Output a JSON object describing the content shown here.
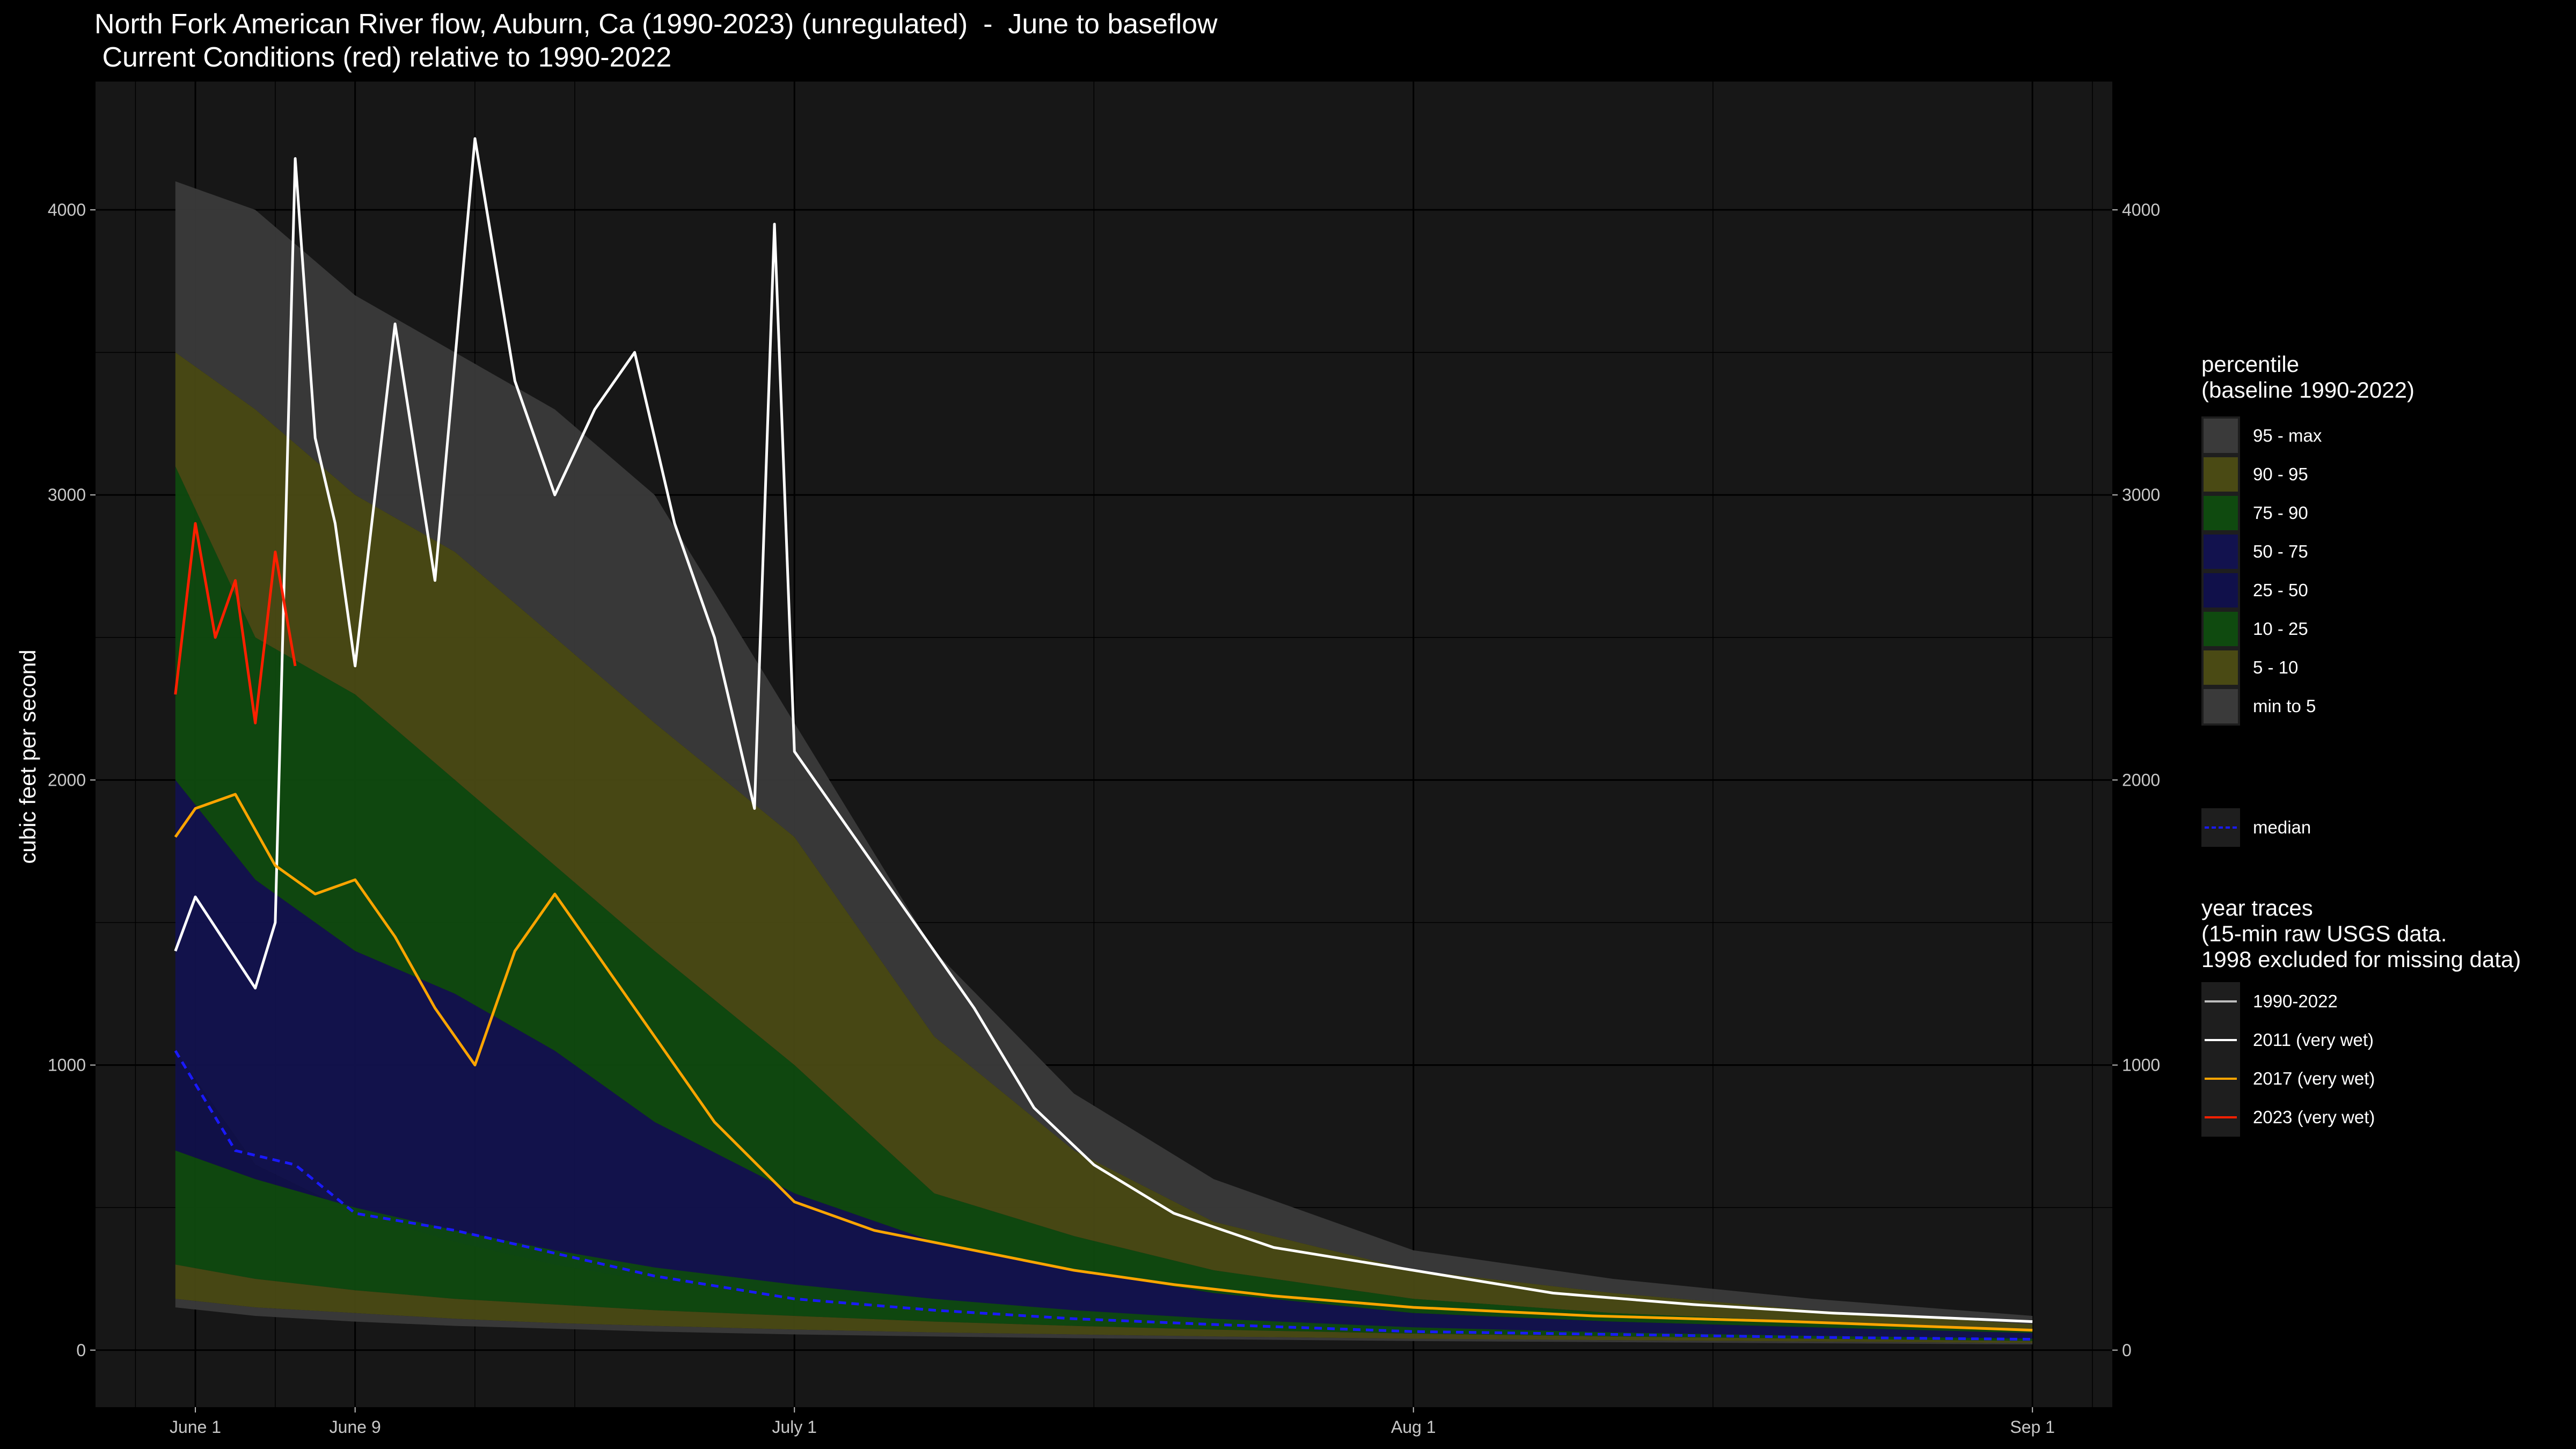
{
  "title": {
    "line1": "North Fork American River flow, Auburn, Ca (1990-2023) (unregulated)  -  June to baseflow",
    "line2": " Current Conditions (red) relative to 1990-2022"
  },
  "axes": {
    "ylabel": "cubic feet per second",
    "x_ticks": [
      "June 1",
      "June 9",
      "July 1",
      "Aug 1",
      "Sep 1"
    ],
    "y_ticks": [
      "0",
      "1000",
      "2000",
      "3000",
      "4000"
    ]
  },
  "legend": {
    "percentile_title": "percentile\n(baseline 1990-2022)",
    "percentile_items": [
      {
        "label": "95 - max",
        "color": "#3a3a3a"
      },
      {
        "label": "90 - 95",
        "color": "#4a4a14"
      },
      {
        "label": "75 - 90",
        "color": "#0f4a0f"
      },
      {
        "label": "50 - 75",
        "color": "#12124e"
      },
      {
        "label": "25 - 50",
        "color": "#10104a"
      },
      {
        "label": "10 - 25",
        "color": "#0f4a0f"
      },
      {
        "label": "5 - 10",
        "color": "#4a4a14"
      },
      {
        "label": "min to 5",
        "color": "#3a3a3a"
      }
    ],
    "median_label": "median",
    "median_color": "#1a1aff",
    "traces_title": "year traces\n(15-min raw USGS data.\n1998 excluded for missing data)",
    "trace_items": [
      {
        "label": "1990-2022",
        "color": "#bdbdbd"
      },
      {
        "label": "2011 (very wet)",
        "color": "#ffffff"
      },
      {
        "label": "2017 (very wet)",
        "color": "#ffa500"
      },
      {
        "label": "2023 (very wet)",
        "color": "#ff2000"
      }
    ]
  },
  "chart_data": {
    "type": "area",
    "title": "North Fork American River flow, Auburn, Ca (1990-2023) (unregulated)  -  June to baseflow",
    "subtitle": " Current Conditions (red) relative to 1990-2022",
    "ylabel": "cubic feet per second",
    "x_ticks": [
      "June 1",
      "June 9",
      "July 1",
      "Aug 1",
      "Sep 1"
    ],
    "xlim": [
      "May 27",
      "Sep 5"
    ],
    "ylim": [
      -200,
      4450
    ],
    "grid": true,
    "legend_position": "right",
    "percentile_bands": {
      "x": [
        "May 31",
        "Jun 4",
        "Jun 9",
        "Jun 14",
        "Jun 19",
        "Jun 24",
        "Jul 1",
        "Jul 8",
        "Jul 15",
        "Jul 22",
        "Aug 1",
        "Aug 11",
        "Aug 21",
        "Sep 1"
      ],
      "p0": [
        150,
        120,
        100,
        85,
        75,
        65,
        55,
        48,
        42,
        38,
        32,
        28,
        24,
        20
      ],
      "p5": [
        180,
        150,
        130,
        110,
        95,
        85,
        72,
        62,
        55,
        48,
        40,
        35,
        30,
        25
      ],
      "p10": [
        300,
        250,
        210,
        180,
        160,
        140,
        120,
        100,
        85,
        72,
        58,
        48,
        40,
        32
      ],
      "p25": [
        700,
        600,
        500,
        420,
        350,
        290,
        230,
        180,
        140,
        110,
        80,
        62,
        50,
        40
      ],
      "p50": [
        1050,
        650,
        480,
        380,
        300,
        240,
        180,
        140,
        110,
        90,
        65,
        55,
        45,
        38
      ],
      "p75": [
        2000,
        1650,
        1400,
        1250,
        1050,
        800,
        550,
        380,
        280,
        200,
        130,
        100,
        80,
        60
      ],
      "p90": [
        3100,
        2500,
        2300,
        2000,
        1700,
        1400,
        1000,
        550,
        400,
        280,
        180,
        130,
        100,
        70
      ],
      "p95": [
        3500,
        3300,
        3000,
        2800,
        2500,
        2200,
        1800,
        1100,
        700,
        450,
        280,
        200,
        140,
        90
      ],
      "pmax": [
        4100,
        4000,
        3700,
        3500,
        3300,
        3000,
        2200,
        1400,
        900,
        600,
        350,
        250,
        180,
        120
      ]
    },
    "series": [
      {
        "name": "median",
        "x": [
          "May 31",
          "Jun 3",
          "Jun 6",
          "Jun 9",
          "Jun 14",
          "Jun 19",
          "Jun 24",
          "Jul 1",
          "Jul 8",
          "Jul 15",
          "Jul 22",
          "Aug 1",
          "Aug 11",
          "Aug 21",
          "Sep 1"
        ],
        "y": [
          1050,
          700,
          650,
          480,
          420,
          340,
          260,
          180,
          140,
          110,
          90,
          65,
          55,
          45,
          38
        ]
      },
      {
        "name": "2011 (very wet)",
        "x": [
          "May 31",
          "Jun 1",
          "Jun 4",
          "Jun 5",
          "Jun 6",
          "Jun 7",
          "Jun 8",
          "Jun 9",
          "Jun 11",
          "Jun 13",
          "Jun 15",
          "Jun 17",
          "Jun 19",
          "Jun 21",
          "Jun 23",
          "Jun 25",
          "Jun 27",
          "Jun 29",
          "Jun 30",
          "Jul 1",
          "Jul 4",
          "Jul 7",
          "Jul 10",
          "Jul 13",
          "Jul 16",
          "Jul 20",
          "Jul 25",
          "Aug 1",
          "Aug 8",
          "Aug 15",
          "Aug 22",
          "Sep 1"
        ],
        "y": [
          1400,
          1590,
          1270,
          1500,
          4180,
          3200,
          2900,
          2400,
          3600,
          2700,
          4250,
          3400,
          3000,
          3300,
          3500,
          2900,
          2500,
          1900,
          3950,
          2100,
          1800,
          1500,
          1200,
          850,
          650,
          480,
          360,
          280,
          200,
          160,
          130,
          100
        ]
      },
      {
        "name": "2017 (very wet)",
        "x": [
          "May 31",
          "Jun 1",
          "Jun 3",
          "Jun 5",
          "Jun 7",
          "Jun 9",
          "Jun 11",
          "Jun 13",
          "Jun 15",
          "Jun 17",
          "Jun 19",
          "Jun 21",
          "Jun 24",
          "Jun 27",
          "Jul 1",
          "Jul 5",
          "Jul 10",
          "Jul 15",
          "Jul 20",
          "Jul 25",
          "Aug 1",
          "Aug 10",
          "Aug 20",
          "Sep 1"
        ],
        "y": [
          1800,
          1900,
          1950,
          1700,
          1600,
          1650,
          1450,
          1200,
          1000,
          1400,
          1600,
          1400,
          1100,
          800,
          520,
          420,
          350,
          280,
          230,
          190,
          150,
          120,
          100,
          70
        ]
      },
      {
        "name": "2023 (very wet)",
        "x": [
          "May 31",
          "Jun 1",
          "Jun 2",
          "Jun 3",
          "Jun 4",
          "Jun 5",
          "Jun 6"
        ],
        "y": [
          2300,
          2900,
          2500,
          2700,
          2200,
          2800,
          2400
        ]
      }
    ]
  }
}
